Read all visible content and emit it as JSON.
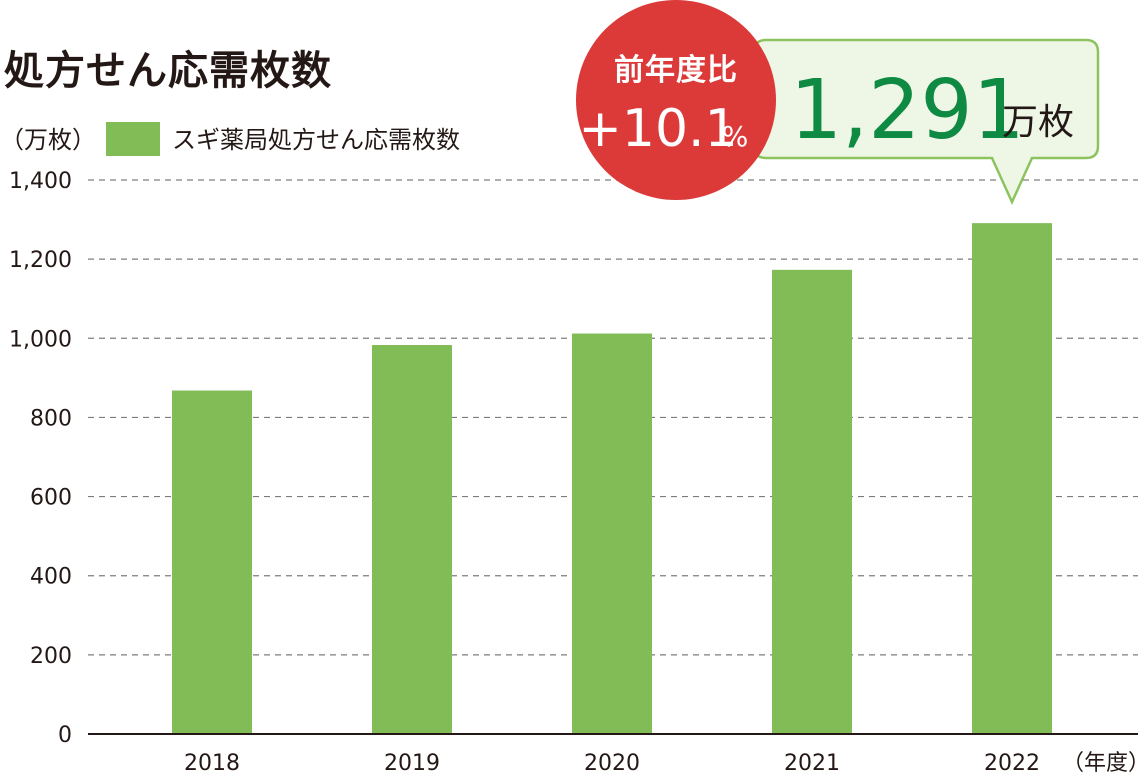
{
  "chart_data": {
    "type": "bar",
    "title": "処方せん応需枚数",
    "ylabel": "（万枚）",
    "xlabel": "（年度）",
    "categories": [
      "2018",
      "2019",
      "2020",
      "2021",
      "2022"
    ],
    "series": [
      {
        "name": "スギ薬局処方せん応需枚数",
        "values": [
          868,
          983,
          1012,
          1173,
          1291
        ]
      }
    ],
    "ylim": [
      0,
      1400
    ],
    "yticks": [
      0,
      200,
      400,
      600,
      800,
      1000,
      1200,
      1400
    ],
    "ytick_labels": [
      "0",
      "200",
      "400",
      "600",
      "800",
      "1,000",
      "1,200",
      "1,400"
    ],
    "grid": true,
    "legend": "top-left",
    "annotations": {
      "yoy_badge": {
        "label": "前年度比",
        "value": "+10.1",
        "suffix": "%"
      },
      "callout": {
        "value": "1,291",
        "unit": "万枚"
      }
    }
  },
  "colors": {
    "bar": "#82bc57",
    "badge": "#dc3939",
    "callout_border": "#8cc35f",
    "callout_fill": "#eef6e6",
    "callout_value": "#0e8a43",
    "text": "#231815"
  }
}
